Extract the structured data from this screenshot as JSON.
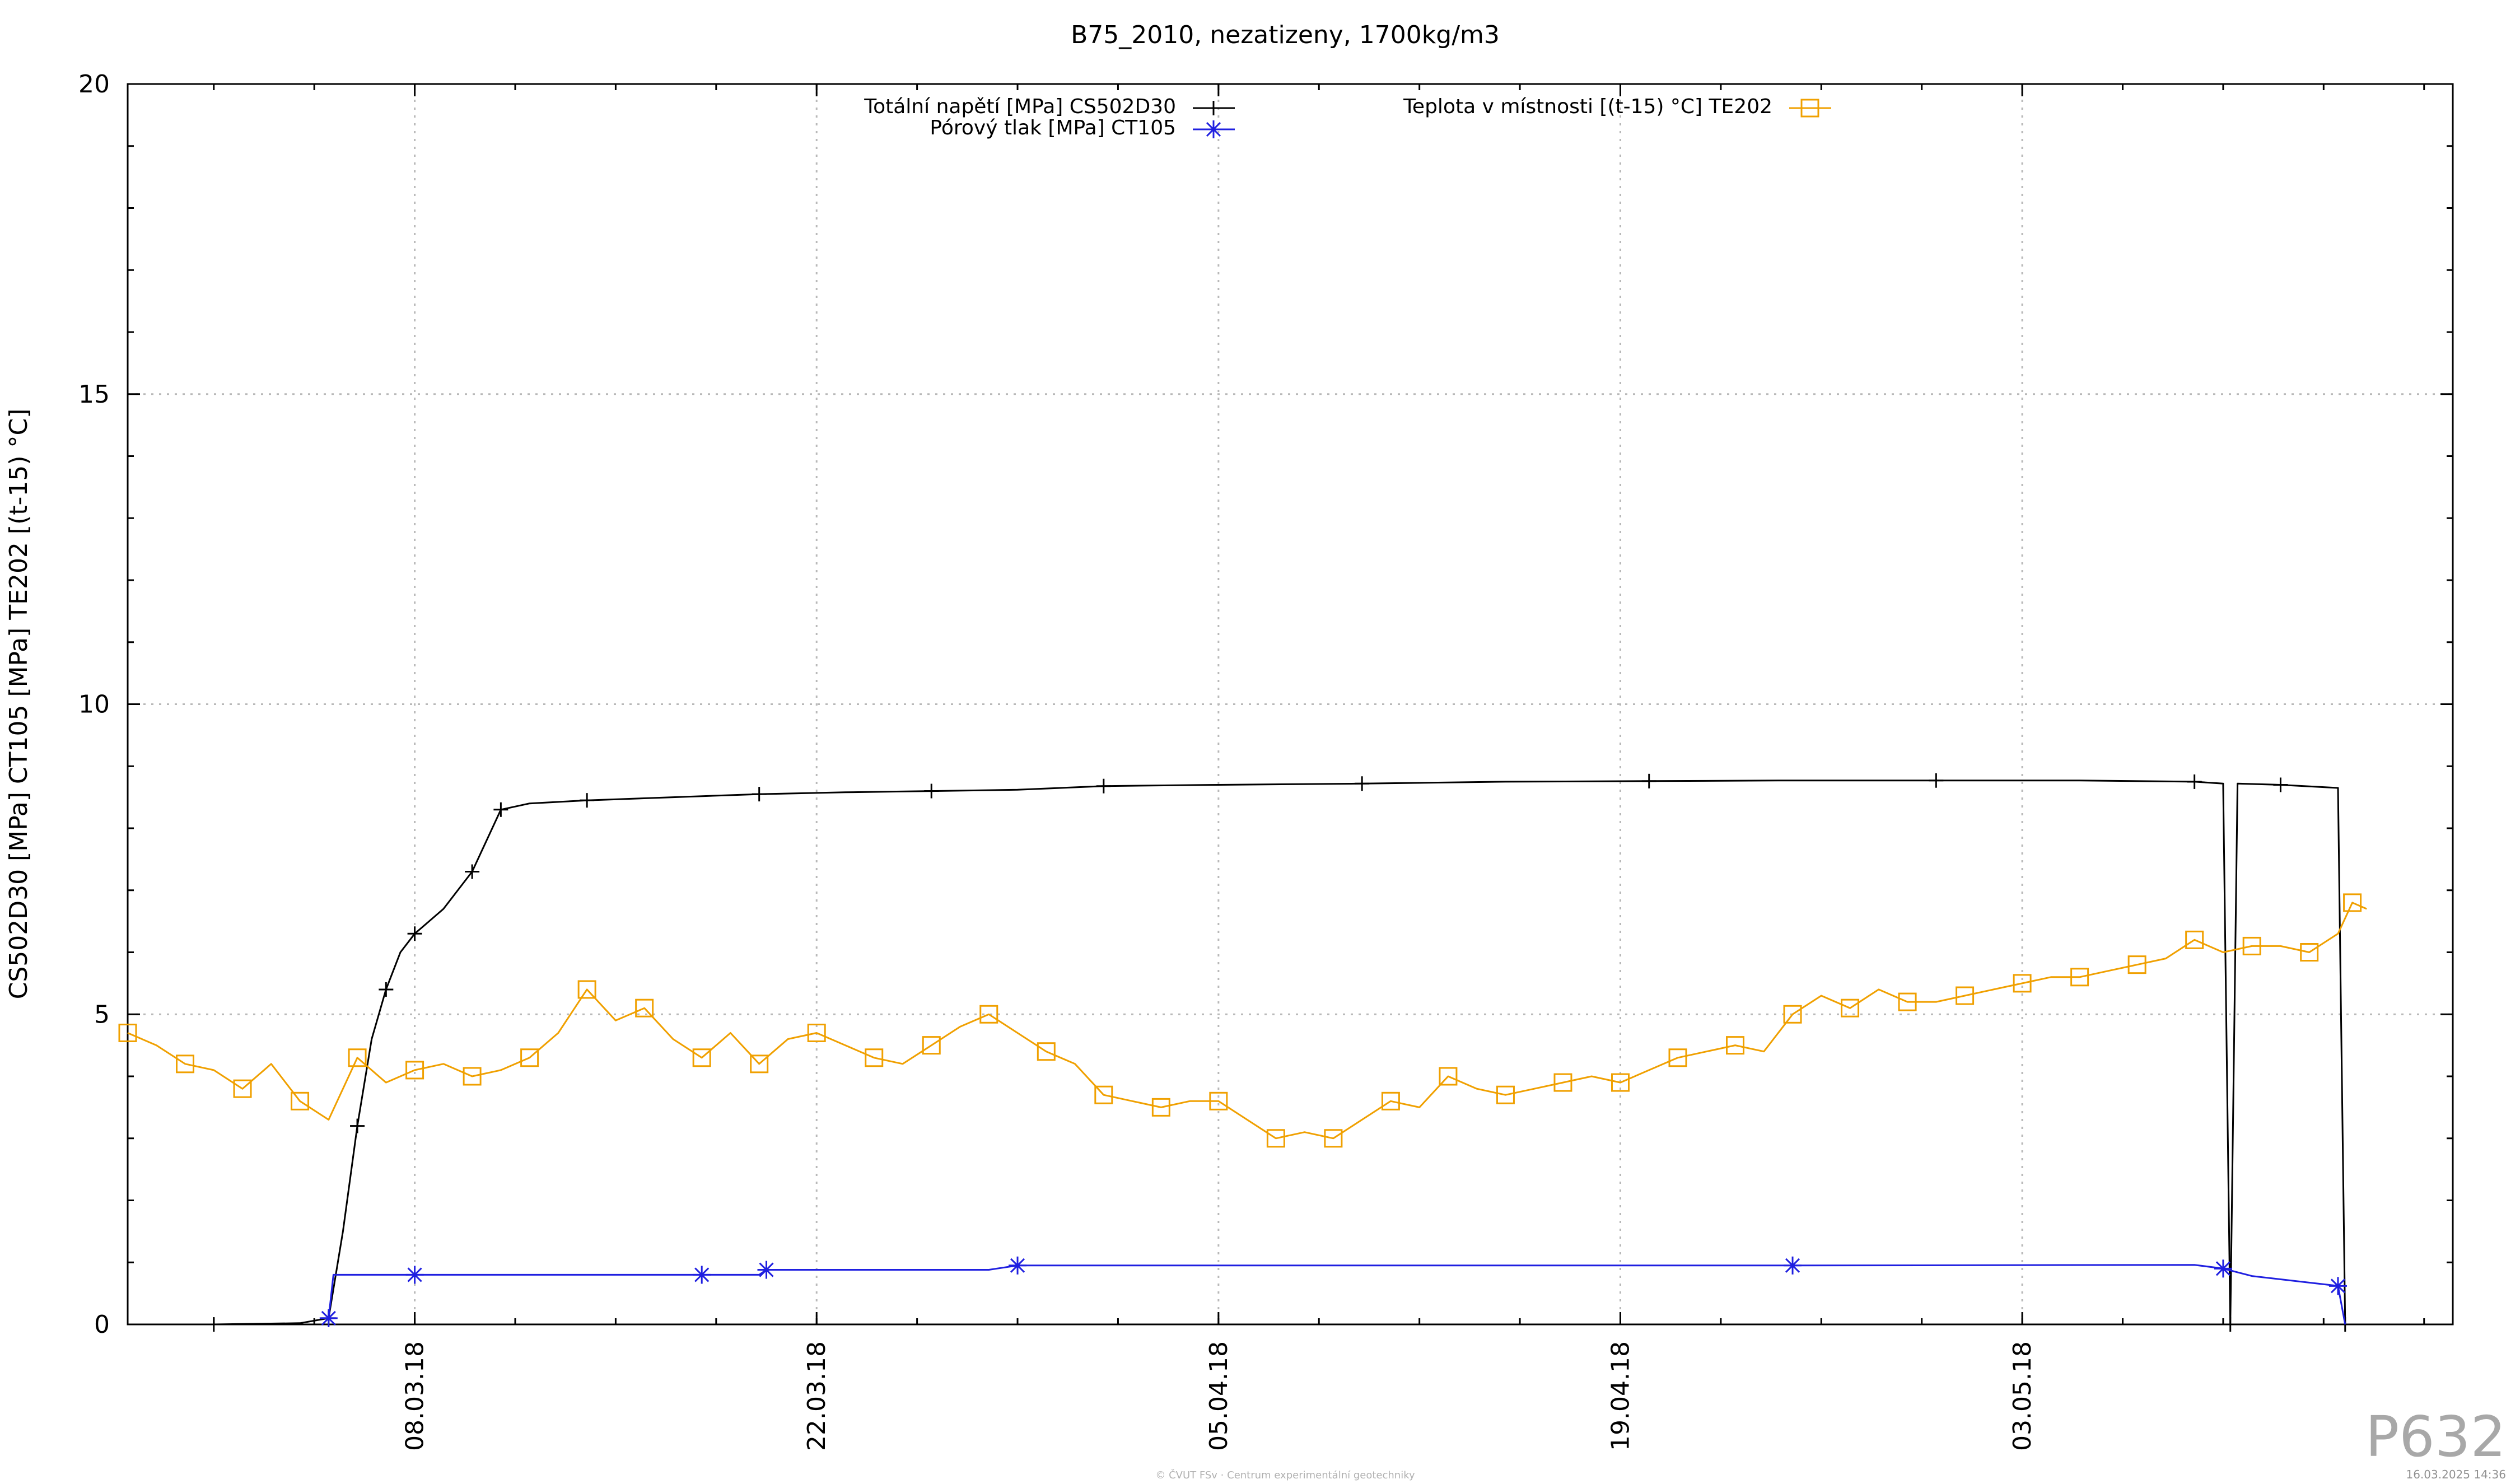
{
  "chart_data": {
    "type": "line",
    "title": "B75_2010, nezatizeny, 1700kg/m3",
    "ylabel": "CS502D30 [MPa] CT105 [MPa] TE202 [(t-15) °C]",
    "xlabel": "",
    "ylim": [
      0,
      20
    ],
    "y_ticks": [
      "0",
      "5",
      "10",
      "15",
      "20"
    ],
    "xlim": [
      "2018-02-26",
      "2018-05-18"
    ],
    "x_ticks": [
      {
        "date": "2018-03-08",
        "label": "08.03.18"
      },
      {
        "date": "2018-03-22",
        "label": "22.03.18"
      },
      {
        "date": "2018-04-05",
        "label": "05.04.18"
      },
      {
        "date": "2018-04-19",
        "label": "19.04.18"
      },
      {
        "date": "2018-05-03",
        "label": "03.05.18"
      }
    ],
    "grid": true,
    "legend_position": "top",
    "series": [
      {
        "name": "Totální napětí [MPa] CS502D30",
        "color": "#000000",
        "marker": "plus",
        "points": [
          [
            "2018-03-01",
            0
          ],
          [
            "2018-03-04",
            0.02
          ],
          [
            "2018-03-05",
            0.1
          ],
          [
            "2018-03-05T12",
            1.5
          ],
          [
            "2018-03-06",
            3.2
          ],
          [
            "2018-03-06T12",
            4.6
          ],
          [
            "2018-03-07",
            5.4
          ],
          [
            "2018-03-07T12",
            6.0
          ],
          [
            "2018-03-08",
            6.3
          ],
          [
            "2018-03-09",
            6.7
          ],
          [
            "2018-03-10",
            7.3
          ],
          [
            "2018-03-10T12",
            7.8
          ],
          [
            "2018-03-11",
            8.3
          ],
          [
            "2018-03-12",
            8.4
          ],
          [
            "2018-03-14",
            8.45
          ],
          [
            "2018-03-17",
            8.5
          ],
          [
            "2018-03-20",
            8.55
          ],
          [
            "2018-03-23",
            8.58
          ],
          [
            "2018-03-26",
            8.6
          ],
          [
            "2018-03-29",
            8.62
          ],
          [
            "2018-04-01",
            8.68
          ],
          [
            "2018-04-05",
            8.7
          ],
          [
            "2018-04-10",
            8.72
          ],
          [
            "2018-04-15",
            8.75
          ],
          [
            "2018-04-20",
            8.76
          ],
          [
            "2018-04-25",
            8.77
          ],
          [
            "2018-04-30",
            8.77
          ],
          [
            "2018-05-05",
            8.77
          ],
          [
            "2018-05-09",
            8.75
          ],
          [
            "2018-05-10",
            8.72
          ],
          [
            "2018-05-10T06",
            0
          ],
          [
            "2018-05-10T12",
            8.72
          ],
          [
            "2018-05-12",
            8.7
          ],
          [
            "2018-05-14",
            8.65
          ],
          [
            "2018-05-14T06",
            0
          ]
        ]
      },
      {
        "name": "Pórový tlak [MPa] CT105",
        "color": "#1f1fe0",
        "marker": "star",
        "points": [
          [
            "2018-03-05",
            0.1
          ],
          [
            "2018-03-05T04",
            0.8
          ],
          [
            "2018-03-08",
            0.8
          ],
          [
            "2018-03-14",
            0.8
          ],
          [
            "2018-03-18",
            0.8
          ],
          [
            "2018-03-20",
            0.8
          ],
          [
            "2018-03-20T06",
            0.88
          ],
          [
            "2018-03-28",
            0.88
          ],
          [
            "2018-03-29",
            0.95
          ],
          [
            "2018-04-10",
            0.95
          ],
          [
            "2018-04-25",
            0.95
          ],
          [
            "2018-05-09",
            0.96
          ],
          [
            "2018-05-10",
            0.9
          ],
          [
            "2018-05-11",
            0.78
          ],
          [
            "2018-05-14",
            0.62
          ],
          [
            "2018-05-14T06",
            0
          ]
        ]
      },
      {
        "name": "Teplota v místnosti [(t-15) °C] TE202",
        "color": "#f0a000",
        "marker": "square",
        "points": [
          [
            "2018-02-26",
            4.7
          ],
          [
            "2018-02-27",
            4.5
          ],
          [
            "2018-02-28",
            4.2
          ],
          [
            "2018-03-01",
            4.1
          ],
          [
            "2018-03-02",
            3.8
          ],
          [
            "2018-03-03",
            4.2
          ],
          [
            "2018-03-04",
            3.6
          ],
          [
            "2018-03-05",
            3.3
          ],
          [
            "2018-03-06",
            4.3
          ],
          [
            "2018-03-07",
            3.9
          ],
          [
            "2018-03-08",
            4.1
          ],
          [
            "2018-03-09",
            4.2
          ],
          [
            "2018-03-10",
            4.0
          ],
          [
            "2018-03-11",
            4.1
          ],
          [
            "2018-03-12",
            4.3
          ],
          [
            "2018-03-13",
            4.7
          ],
          [
            "2018-03-14",
            5.4
          ],
          [
            "2018-03-15",
            4.9
          ],
          [
            "2018-03-16",
            5.1
          ],
          [
            "2018-03-17",
            4.6
          ],
          [
            "2018-03-18",
            4.3
          ],
          [
            "2018-03-19",
            4.7
          ],
          [
            "2018-03-20",
            4.2
          ],
          [
            "2018-03-21",
            4.6
          ],
          [
            "2018-03-22",
            4.7
          ],
          [
            "2018-03-23",
            4.5
          ],
          [
            "2018-03-24",
            4.3
          ],
          [
            "2018-03-25",
            4.2
          ],
          [
            "2018-03-26",
            4.5
          ],
          [
            "2018-03-27",
            4.8
          ],
          [
            "2018-03-28",
            5.0
          ],
          [
            "2018-03-29",
            4.7
          ],
          [
            "2018-03-30",
            4.4
          ],
          [
            "2018-03-31",
            4.2
          ],
          [
            "2018-04-01",
            3.7
          ],
          [
            "2018-04-02",
            3.6
          ],
          [
            "2018-04-03",
            3.5
          ],
          [
            "2018-04-04",
            3.6
          ],
          [
            "2018-04-05",
            3.6
          ],
          [
            "2018-04-06",
            3.3
          ],
          [
            "2018-04-07",
            3.0
          ],
          [
            "2018-04-08",
            3.1
          ],
          [
            "2018-04-09",
            3.0
          ],
          [
            "2018-04-10",
            3.3
          ],
          [
            "2018-04-11",
            3.6
          ],
          [
            "2018-04-12",
            3.5
          ],
          [
            "2018-04-13",
            4.0
          ],
          [
            "2018-04-14",
            3.8
          ],
          [
            "2018-04-15",
            3.7
          ],
          [
            "2018-04-16",
            3.8
          ],
          [
            "2018-04-17",
            3.9
          ],
          [
            "2018-04-18",
            4.0
          ],
          [
            "2018-04-19",
            3.9
          ],
          [
            "2018-04-20",
            4.1
          ],
          [
            "2018-04-21",
            4.3
          ],
          [
            "2018-04-22",
            4.4
          ],
          [
            "2018-04-23",
            4.5
          ],
          [
            "2018-04-24",
            4.4
          ],
          [
            "2018-04-25",
            5.0
          ],
          [
            "2018-04-26",
            5.3
          ],
          [
            "2018-04-27",
            5.1
          ],
          [
            "2018-04-28",
            5.4
          ],
          [
            "2018-04-29",
            5.2
          ],
          [
            "2018-04-30",
            5.2
          ],
          [
            "2018-05-01",
            5.3
          ],
          [
            "2018-05-02",
            5.4
          ],
          [
            "2018-05-03",
            5.5
          ],
          [
            "2018-05-04",
            5.6
          ],
          [
            "2018-05-05",
            5.6
          ],
          [
            "2018-05-06",
            5.7
          ],
          [
            "2018-05-07",
            5.8
          ],
          [
            "2018-05-08",
            5.9
          ],
          [
            "2018-05-09",
            6.2
          ],
          [
            "2018-05-10",
            6.0
          ],
          [
            "2018-05-11",
            6.1
          ],
          [
            "2018-05-12",
            6.1
          ],
          [
            "2018-05-13",
            6.0
          ],
          [
            "2018-05-14",
            6.3
          ],
          [
            "2018-05-14T12",
            6.8
          ],
          [
            "2018-05-15",
            6.7
          ]
        ]
      }
    ]
  },
  "watermark": "P632",
  "footer_credit": "© ČVUT FSv · Centrum experimentální geotechniky",
  "footer_timestamp": "16.03.2025 14:36",
  "colors": {
    "grid": "#b8b8b8",
    "axis": "#000000"
  }
}
